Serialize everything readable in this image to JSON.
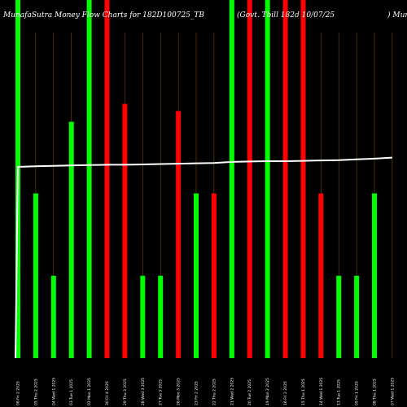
{
  "chart_data": {
    "type": "bar",
    "title_left": "MunafaSutra  Money Flow  Charts for 182D100725_TB",
    "title_mid": "(Govt. Tbill 182d 10/07/25",
    "title_right": ") Munafa",
    "categories": [
      "06 Fri 2 2025",
      "05 Thu 2 2025",
      "04 Wed 1 2025",
      "03 Tue 1 2025",
      "02 Mon 1 2025",
      "30 Fri 4 2025",
      "29 Thu 3 2025",
      "28 Wed 3 2025",
      "27 Tue 3 2025",
      "26 Mon 3 2025",
      "23 Fri 2 2025",
      "22 Thu 2 2025",
      "21 Wed 2 2025",
      "20 Tue 2 2025",
      "19 Mon 2 2025",
      "16 Fri 2 2025",
      "15 Thu 1 2025",
      "14 Wed 1 2025",
      "13 Tue 1 2025",
      "09 Fri 1 2025",
      "08 Thu 1 2025",
      "07 Wed 1 2025"
    ],
    "values": [
      100,
      46,
      23,
      66,
      100,
      100,
      71,
      23,
      23,
      69,
      46,
      46,
      100,
      100,
      100,
      100,
      100,
      46,
      23,
      23,
      46,
      0
    ],
    "directions": [
      "up",
      "up",
      "up",
      "up",
      "up",
      "down",
      "down",
      "up",
      "up",
      "down",
      "up",
      "down",
      "up",
      "down",
      "up",
      "down",
      "down",
      "down",
      "up",
      "up",
      "up",
      "up"
    ],
    "line_values": [
      53.4,
      53.6,
      53.7,
      53.8,
      53.9,
      54.0,
      54.0,
      54.1,
      54.2,
      54.3,
      54.4,
      54.5,
      54.8,
      54.9,
      55.0,
      55.0,
      55.1,
      55.2,
      55.3,
      55.5,
      55.7,
      56.0
    ],
    "line_start_value": 0,
    "ylim": [
      0,
      100
    ],
    "grid": true,
    "colors": {
      "background": "#000000",
      "up": "#00ff00",
      "down": "#ff0000",
      "grid": "#ffa500",
      "line": "#ffffff",
      "text": "#ffffff"
    }
  }
}
